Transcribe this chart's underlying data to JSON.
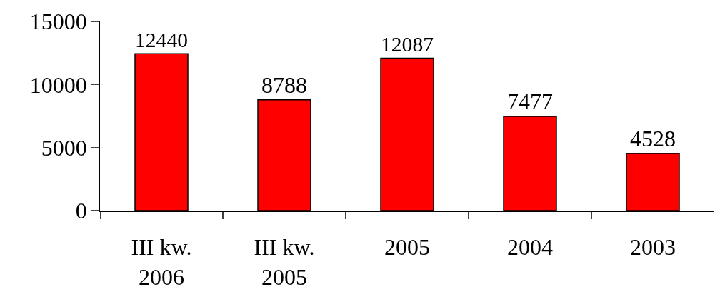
{
  "chart_data": {
    "type": "bar",
    "categories": [
      "III kw.\n2006",
      "III kw.\n2005",
      "2005",
      "2004",
      "2003"
    ],
    "values": [
      12440,
      8788,
      12087,
      7477,
      4528
    ],
    "color": "#ff0000",
    "ylim": [
      0,
      15000
    ],
    "yticks": [
      0,
      5000,
      10000,
      15000
    ],
    "legend": false,
    "data_labels": true
  }
}
